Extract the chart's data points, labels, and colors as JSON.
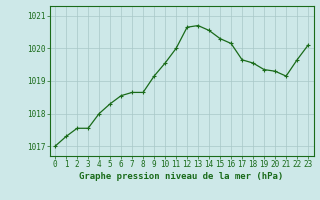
{
  "x": [
    0,
    1,
    2,
    3,
    4,
    5,
    6,
    7,
    8,
    9,
    10,
    11,
    12,
    13,
    14,
    15,
    16,
    17,
    18,
    19,
    20,
    21,
    22,
    23
  ],
  "y": [
    1017.0,
    1017.3,
    1017.55,
    1017.55,
    1018.0,
    1018.3,
    1018.55,
    1018.65,
    1018.65,
    1019.15,
    1019.55,
    1020.0,
    1020.65,
    1020.7,
    1020.55,
    1020.3,
    1020.15,
    1019.65,
    1019.55,
    1019.35,
    1019.3,
    1019.15,
    1019.65,
    1020.1
  ],
  "line_color": "#1a6b1a",
  "marker": "+",
  "marker_size": 3,
  "marker_linewidth": 0.8,
  "bg_color": "#cde8e8",
  "grid_color": "#a8c8c8",
  "xlabel": "Graphe pression niveau de la mer (hPa)",
  "xlabel_color": "#1a6b1a",
  "tick_color": "#1a6b1a",
  "ylim": [
    1016.7,
    1021.3
  ],
  "xlim": [
    -0.5,
    23.5
  ],
  "yticks": [
    1017,
    1018,
    1019,
    1020,
    1021
  ],
  "xticks": [
    0,
    1,
    2,
    3,
    4,
    5,
    6,
    7,
    8,
    9,
    10,
    11,
    12,
    13,
    14,
    15,
    16,
    17,
    18,
    19,
    20,
    21,
    22,
    23
  ],
  "spine_color": "#1a6b1a",
  "tick_fontsize": 5.5,
  "xlabel_fontsize": 6.5,
  "line_width": 0.9
}
